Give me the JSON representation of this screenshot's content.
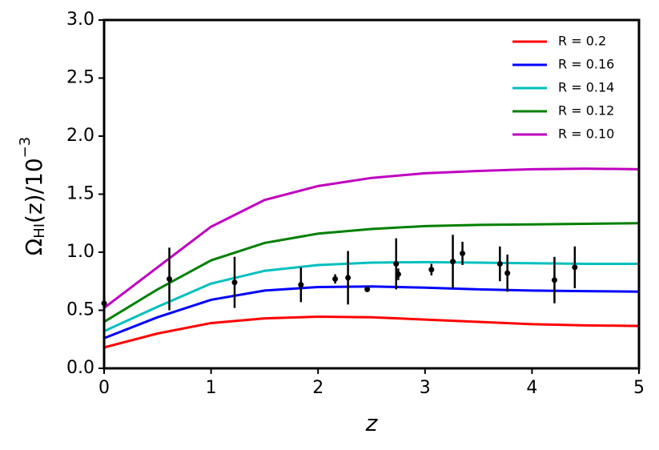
{
  "chart_data": {
    "type": "line",
    "xlabel": "z",
    "ylabel_parts": [
      "Ω",
      "HI",
      "(z)/10",
      "−3"
    ],
    "xlim": [
      0,
      5
    ],
    "ylim": [
      0,
      3
    ],
    "xticks": [
      0,
      1,
      2,
      3,
      4,
      5
    ],
    "yticks": [
      {
        "value": 0,
        "label": "0.0"
      },
      {
        "value": 0.5,
        "label": "0.5"
      },
      {
        "value": 1,
        "label": "1.0"
      },
      {
        "value": 1.5,
        "label": "1.5"
      },
      {
        "value": 2,
        "label": "2.0"
      },
      {
        "value": 2.5,
        "label": "2.5"
      },
      {
        "value": 3,
        "label": "3.0"
      }
    ],
    "legend": "upper right",
    "x": [
      0,
      0.5,
      1,
      1.5,
      2,
      2.5,
      3,
      3.5,
      4,
      4.5,
      5
    ],
    "series": [
      {
        "name": "R = 0.2",
        "color": "#ff0000",
        "values": [
          0.18,
          0.3,
          0.39,
          0.43,
          0.445,
          0.44,
          0.42,
          0.4,
          0.38,
          0.37,
          0.365
        ]
      },
      {
        "name": "R = 0.16",
        "color": "#0000ff",
        "values": [
          0.26,
          0.44,
          0.59,
          0.67,
          0.7,
          0.705,
          0.695,
          0.68,
          0.67,
          0.665,
          0.66
        ]
      },
      {
        "name": "R = 0.14",
        "color": "#00bfbf",
        "values": [
          0.32,
          0.53,
          0.73,
          0.84,
          0.89,
          0.91,
          0.915,
          0.91,
          0.905,
          0.9,
          0.9
        ]
      },
      {
        "name": "R = 0.12",
        "color": "#008000",
        "values": [
          0.4,
          0.68,
          0.93,
          1.08,
          1.16,
          1.2,
          1.225,
          1.235,
          1.24,
          1.245,
          1.25
        ]
      },
      {
        "name": "R = 0.10",
        "color": "#bf00bf",
        "values": [
          0.52,
          0.87,
          1.22,
          1.45,
          1.57,
          1.64,
          1.68,
          1.7,
          1.715,
          1.72,
          1.715
        ]
      }
    ],
    "points": {
      "color": "#000000",
      "x": [
        0,
        0.61,
        1.22,
        1.84,
        2.16,
        2.28,
        2.46,
        2.73,
        2.75,
        3.06,
        3.26,
        3.35,
        3.7,
        3.77,
        4.21,
        4.4
      ],
      "values": [
        0.56,
        0.77,
        0.74,
        0.72,
        0.77,
        0.78,
        0.68,
        0.9,
        0.81,
        0.85,
        0.92,
        0.99,
        0.9,
        0.82,
        0.76,
        0.87
      ],
      "errors": [
        0.03,
        0.27,
        0.22,
        0.15,
        0.04,
        0.23,
        0.02,
        0.22,
        0.05,
        0.05,
        0.23,
        0.1,
        0.15,
        0.16,
        0.2,
        0.18
      ]
    }
  }
}
